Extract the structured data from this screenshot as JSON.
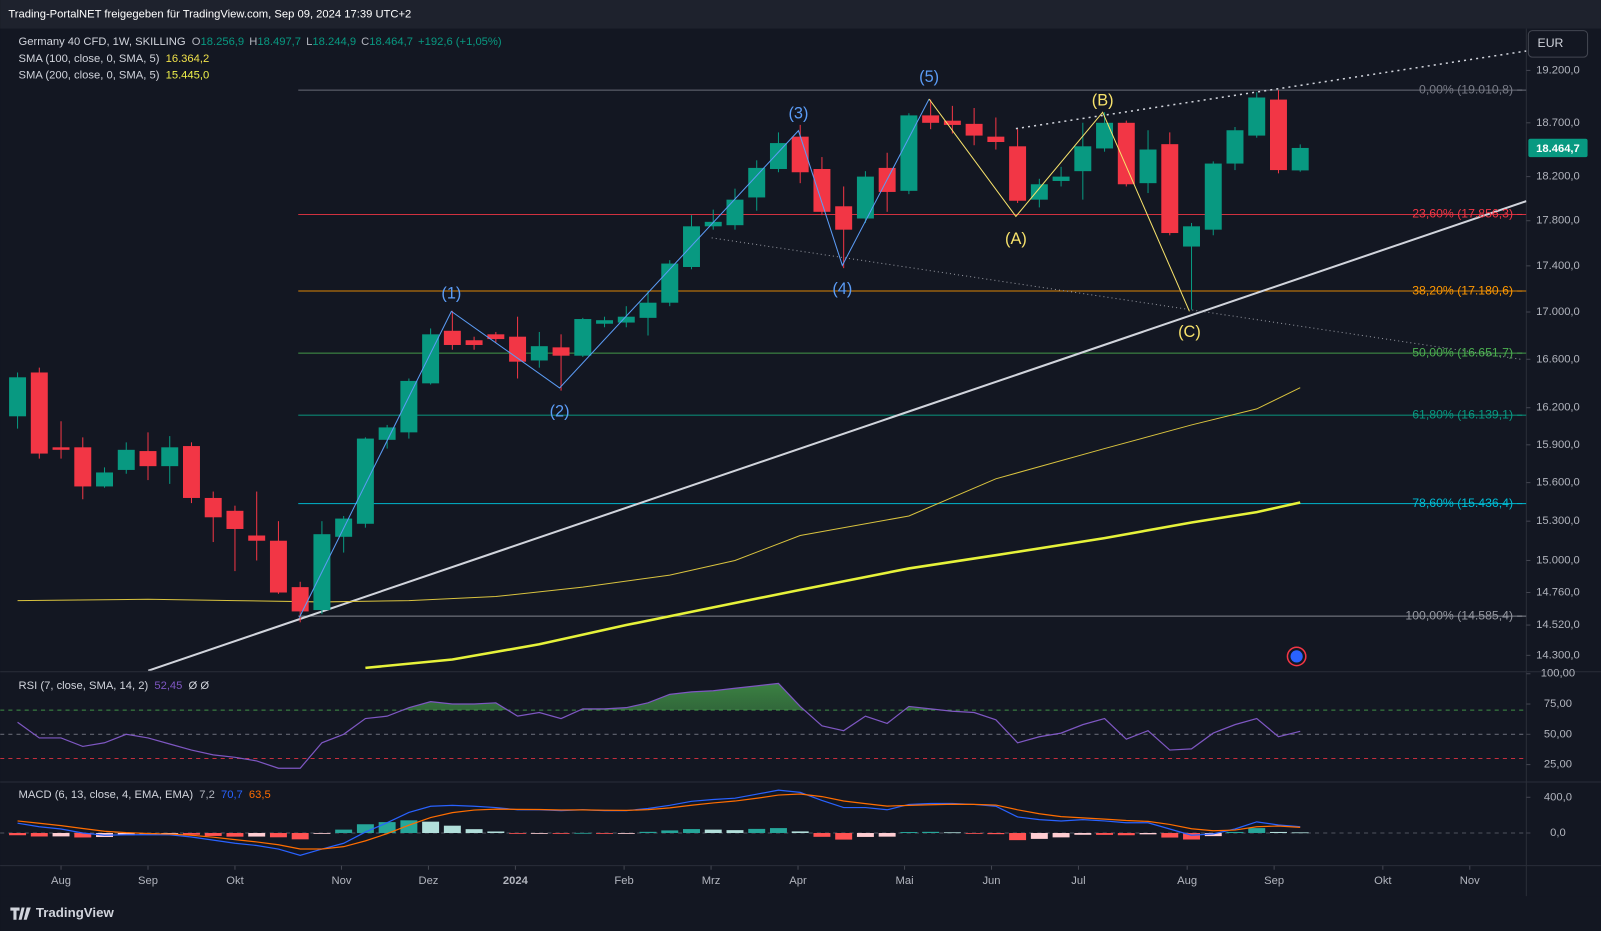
{
  "header": {
    "title": "Trading-PortalNET freigegeben für TradingView.com, Sep 09, 2024 17:39 UTC+2"
  },
  "footer": {
    "brand": "TradingView"
  },
  "chart_data": [
    {
      "type": "candlestick",
      "title": "Germany 40 CFD, 1W, SKILLING",
      "ohlc_legend": [
        {
          "key": "O",
          "value": "18.256,9"
        },
        {
          "key": "H",
          "value": "18.497,7"
        },
        {
          "key": "L",
          "value": "18.244,9"
        },
        {
          "key": "C",
          "value": "18.464,7"
        }
      ],
      "change": "+192,6 (+1,05%)",
      "currency": "EUR",
      "last_price_label": "18.464,7",
      "up_color": "#089981",
      "down_color": "#f23645",
      "log_scale": true,
      "ylim": [
        14190,
        19609
      ],
      "yticks": [
        {
          "value": 19200,
          "label": "19.200,0"
        },
        {
          "value": 18700,
          "label": "18.700,0"
        },
        {
          "value": 18200,
          "label": "18.200,0"
        },
        {
          "value": 17800,
          "label": "17.800,0"
        },
        {
          "value": 17400,
          "label": "17.400,0"
        },
        {
          "value": 17000,
          "label": "17.000,0"
        },
        {
          "value": 16600,
          "label": "16.600,0"
        },
        {
          "value": 16200,
          "label": "16.200,0"
        },
        {
          "value": 15900,
          "label": "15.900,0"
        },
        {
          "value": 15600,
          "label": "15.600,0"
        },
        {
          "value": 15300,
          "label": "15.300,0"
        },
        {
          "value": 15000,
          "label": "15.000,0"
        },
        {
          "value": 14760,
          "label": "14.760,0"
        },
        {
          "value": 14520,
          "label": "14.520,0"
        },
        {
          "value": 14300,
          "label": "14.300,0"
        }
      ],
      "xlim": [
        -0.8,
        69.4
      ],
      "xticks": [
        {
          "value": 2,
          "label": "Aug"
        },
        {
          "value": 6,
          "label": "Sep"
        },
        {
          "value": 10,
          "label": "Okt"
        },
        {
          "value": 14.9,
          "label": "Nov"
        },
        {
          "value": 18.9,
          "label": "Dez"
        },
        {
          "value": 22.9,
          "label": "2024",
          "bold": true
        },
        {
          "value": 27.9,
          "label": "Feb"
        },
        {
          "value": 31.9,
          "label": "Mrz"
        },
        {
          "value": 35.9,
          "label": "Apr"
        },
        {
          "value": 40.8,
          "label": "Mai"
        },
        {
          "value": 44.8,
          "label": "Jun"
        },
        {
          "value": 48.8,
          "label": "Jul"
        },
        {
          "value": 53.8,
          "label": "Aug"
        },
        {
          "value": 57.8,
          "label": "Sep"
        },
        {
          "value": 62.8,
          "label": "Okt"
        },
        {
          "value": 66.8,
          "label": "Nov"
        }
      ],
      "open": [
        16130,
        16490,
        15880,
        15880,
        15570,
        15700,
        15850,
        15730,
        15890,
        15480,
        15380,
        15190,
        15150,
        14800,
        14630,
        15180,
        15280,
        15940,
        16000,
        16400,
        16840,
        16760,
        16810,
        16790,
        16590,
        16700,
        16630,
        16900,
        16910,
        16950,
        17080,
        17390,
        17750,
        17760,
        18010,
        18270,
        18570,
        18270,
        17930,
        17820,
        18280,
        18070,
        18770,
        18720,
        18690,
        18570,
        18480,
        17990,
        18160,
        18250,
        18460,
        18700,
        18140,
        18500,
        17570,
        17720,
        18320,
        18580,
        18920,
        18256.9
      ],
      "high": [
        16490,
        16530,
        16090,
        15960,
        15720,
        15920,
        16000,
        15970,
        15920,
        15530,
        15420,
        15530,
        15300,
        14840,
        15300,
        15340,
        15960,
        16060,
        16440,
        16860,
        17010,
        16790,
        16830,
        16960,
        16830,
        16810,
        16950,
        16960,
        17050,
        17180,
        17450,
        17850,
        17900,
        18090,
        18350,
        18610,
        18680,
        18380,
        18110,
        18250,
        18420,
        18790,
        18920,
        18860,
        18840,
        18750,
        18640,
        18180,
        18290,
        18700,
        18800,
        18720,
        18630,
        18610,
        17780,
        18340,
        18660,
        18990,
        19010,
        18497.7
      ],
      "low": [
        16030,
        15790,
        15790,
        15470,
        15560,
        15670,
        15620,
        15590,
        15440,
        15140,
        14920,
        15000,
        14750,
        14540,
        14600,
        15060,
        15250,
        15870,
        15950,
        16390,
        16680,
        16680,
        16740,
        16440,
        16530,
        16340,
        16620,
        16870,
        16870,
        16800,
        17050,
        17370,
        17720,
        17720,
        17890,
        18240,
        18140,
        17850,
        17380,
        17780,
        17880,
        18040,
        18640,
        18600,
        18490,
        18450,
        17960,
        17920,
        18110,
        17990,
        18430,
        18110,
        18050,
        17670,
        17020,
        17670,
        18260,
        18560,
        18230,
        18244.9
      ],
      "close": [
        16450,
        15830,
        15860,
        15570,
        15680,
        15860,
        15730,
        15880,
        15480,
        15330,
        15240,
        15150,
        14760,
        14620,
        15200,
        15320,
        15950,
        16040,
        16420,
        16810,
        16720,
        16720,
        16770,
        16580,
        16710,
        16630,
        16940,
        16930,
        16960,
        17080,
        17420,
        17750,
        17790,
        17990,
        18280,
        18510,
        18240,
        17880,
        17720,
        18200,
        18060,
        18770,
        18700,
        18680,
        18580,
        18520,
        17980,
        18130,
        18200,
        18480,
        18700,
        18130,
        18450,
        17690,
        17750,
        18320,
        18630,
        18940,
        18260,
        18464.7
      ],
      "overlays": [
        {
          "name": "SMA (100, close, 0, SMA, 5)",
          "value_label": "16.364,2",
          "color": "#d9c33f",
          "label_color": "#f0e14a",
          "width": 1,
          "x": [
            0,
            6,
            10,
            14,
            18,
            22,
            26,
            30,
            33,
            36,
            41,
            45,
            50,
            54,
            57,
            59
          ],
          "values": [
            14700,
            14710,
            14700,
            14690,
            14700,
            14730,
            14800,
            14890,
            15000,
            15190,
            15340,
            15630,
            15870,
            16060,
            16190,
            16364.2
          ]
        },
        {
          "name": "SMA (200, close, 0, SMA, 5)",
          "value_label": "15.445,0",
          "color": "#e6f23a",
          "label_color": "#f0f24a",
          "width": 2.5,
          "x": [
            16,
            20,
            24,
            28,
            32,
            36,
            41,
            45,
            50,
            54,
            57,
            59
          ],
          "values": [
            14210,
            14270,
            14380,
            14520,
            14650,
            14780,
            14940,
            15040,
            15170,
            15290,
            15370,
            15445
          ]
        }
      ],
      "fib_levels": [
        {
          "label": "0,00% (19.010,8)",
          "value": 19010.8,
          "color": "#787b86"
        },
        {
          "label": "23,60% (17.856,3)",
          "value": 17856.3,
          "color": "#f23645"
        },
        {
          "label": "38,20% (17.180,6)",
          "value": 17180.6,
          "color": "#ff9800"
        },
        {
          "label": "50,00% (16.651,7)",
          "value": 16651.7,
          "color": "#4caf50"
        },
        {
          "label": "61,80% (16.139,1)",
          "value": 16139.1,
          "color": "#089981"
        },
        {
          "label": "78,60% (15.436,4)",
          "value": 15436.4,
          "color": "#00bcd4"
        },
        {
          "label": "100,00% (14.585,4)",
          "value": 14585.4,
          "color": "#9598a1"
        }
      ],
      "annotations": [
        {
          "text": "(1)",
          "color": "#5b9cf6"
        },
        {
          "text": "(2)",
          "color": "#5b9cf6"
        },
        {
          "text": "(3)",
          "color": "#5b9cf6"
        },
        {
          "text": "(4)",
          "color": "#5b9cf6"
        },
        {
          "text": "(5)",
          "color": "#5b9cf6"
        },
        {
          "text": "(A)",
          "color": "#f7e26b"
        },
        {
          "text": "(B)",
          "color": "#f7e26b"
        },
        {
          "text": "(C)",
          "color": "#f7e26b"
        }
      ]
    },
    {
      "type": "line",
      "title": "RSI (7, close, SMA, 14, 2)",
      "value_label": "52,45",
      "extra": "Ø Ø",
      "color": "#7e57c2",
      "ylim": [
        11.5,
        100
      ],
      "yticks": [
        {
          "value": 100,
          "label": "100,00"
        },
        {
          "value": 75,
          "label": "75,00"
        },
        {
          "value": 50,
          "label": "50,00"
        },
        {
          "value": 25,
          "label": "25,00"
        }
      ],
      "bands": [
        {
          "value": 70,
          "color": "#4caf50"
        },
        {
          "value": 50,
          "color": "#787b86"
        },
        {
          "value": 30,
          "color": "#f23645"
        }
      ],
      "values": [
        60,
        47,
        47,
        40,
        43,
        50,
        47,
        42,
        37,
        33,
        31,
        28,
        22,
        22,
        43,
        50,
        63,
        65,
        72,
        77,
        75,
        75,
        76,
        65,
        68,
        63,
        71,
        71,
        72,
        76,
        83,
        85,
        86,
        88,
        90,
        92,
        73,
        57,
        53,
        65,
        59,
        73,
        71,
        69,
        68,
        62,
        43,
        48,
        51,
        58,
        63,
        46,
        53,
        37,
        38,
        51,
        58,
        63,
        48,
        52.45
      ]
    },
    {
      "type": "macd",
      "title": "MACD (6, 13, close, 4, EMA, EMA)",
      "legend_values": [
        {
          "text": "7,2",
          "color": "#b2b5be"
        },
        {
          "text": "70,7",
          "color": "#2962ff"
        },
        {
          "text": "63,5",
          "color": "#ff6d00"
        }
      ],
      "ylim": [
        -366,
        549
      ],
      "yticks": [
        {
          "value": 400,
          "label": "400,0"
        },
        {
          "value": 0,
          "label": "0,0"
        }
      ],
      "histogram": [
        -25,
        -39,
        -38,
        -50,
        -45,
        -24,
        -14,
        -8,
        -20,
        -33,
        -41,
        -40,
        -48,
        -71,
        -1,
        38,
        98,
        122,
        142,
        127,
        82,
        43,
        17,
        -5,
        -3,
        -8,
        1,
        -5,
        -3,
        13,
        29,
        44,
        38,
        32,
        46,
        55,
        18,
        -43,
        -74,
        -44,
        -41,
        11,
        13,
        8,
        -1,
        -13,
        -80,
        -66,
        -49,
        -20,
        -21,
        -25,
        -15,
        -51,
        -73,
        -35,
        12,
        55,
        12,
        7.2
      ],
      "macd": {
        "color": "#2962ff",
        "values": [
          110,
          70,
          45,
          0,
          -25,
          -20,
          -20,
          -20,
          -45,
          -80,
          -115,
          -140,
          -180,
          -250,
          -180,
          -115,
          10,
          115,
          230,
          300,
          310,
          300,
          285,
          260,
          260,
          250,
          260,
          250,
          250,
          275,
          310,
          355,
          375,
          390,
          435,
          480,
          455,
          365,
          285,
          285,
          260,
          320,
          330,
          330,
          320,
          300,
          180,
          150,
          135,
          150,
          135,
          115,
          115,
          45,
          -25,
          -10,
          45,
          125,
          90,
          70.7
        ]
      },
      "signal": {
        "color": "#ff6d00",
        "values": [
          135,
          109,
          83,
          50,
          20,
          4,
          -6,
          -12,
          -25,
          -47,
          -74,
          -100,
          -132,
          -179,
          -179,
          -153,
          -88,
          -7,
          88,
          173,
          228,
          257,
          268,
          265,
          263,
          258,
          259,
          255,
          253,
          262,
          281,
          311,
          337,
          358,
          389,
          425,
          437,
          408,
          359,
          329,
          301,
          309,
          317,
          322,
          321,
          313,
          260,
          216,
          184,
          170,
          156,
          140,
          130,
          96,
          48,
          25,
          33,
          70,
          78,
          63.5
        ]
      }
    }
  ]
}
